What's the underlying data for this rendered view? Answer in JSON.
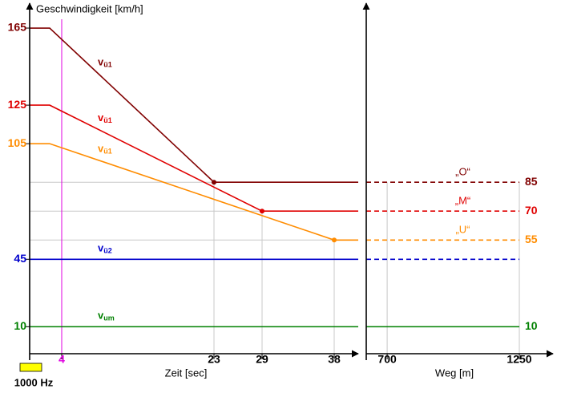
{
  "chart_data": [
    {
      "type": "line",
      "title": "Geschwindigkeit [km/h]",
      "x_label": "Zeit [sec]",
      "xlim": [
        0,
        41
      ],
      "xticks": [
        4,
        23,
        29,
        38
      ],
      "xtick_colors": [
        "#e000e0",
        "#000000",
        "#000000",
        "#000000"
      ],
      "ylim": [
        -4,
        175
      ],
      "yticks": [
        10,
        45,
        105,
        125,
        165
      ],
      "ytick_colors": [
        "#008000",
        "#0000cc",
        "#ff8c00",
        "#e00000",
        "#800000"
      ],
      "reference_line": {
        "x": 4,
        "color": "#e000e0"
      },
      "signal": {
        "label": "1000 Hz",
        "color": "#ffff00"
      },
      "series": [
        {
          "label": "v",
          "label_sub": "ü1",
          "color": "#800000",
          "marker": true,
          "x": [
            0,
            2.5,
            23,
            41
          ],
          "values": [
            165,
            165,
            85,
            85
          ]
        },
        {
          "label": "v",
          "label_sub": "ü1",
          "color": "#e00000",
          "marker": true,
          "x": [
            0,
            2.5,
            29,
            41
          ],
          "values": [
            125,
            125,
            70,
            70
          ]
        },
        {
          "label": "v",
          "label_sub": "ü1",
          "color": "#ff8c00",
          "marker": true,
          "x": [
            0,
            2.5,
            38,
            41
          ],
          "values": [
            105,
            105,
            55,
            55
          ]
        },
        {
          "label": "v",
          "label_sub": "ü2",
          "color": "#0000cc",
          "marker": false,
          "x": [
            0,
            41
          ],
          "values": [
            45,
            45
          ]
        },
        {
          "label": "v",
          "label_sub": "um",
          "color": "#008000",
          "marker": false,
          "x": [
            0,
            41
          ],
          "values": [
            10,
            10
          ]
        }
      ]
    },
    {
      "type": "line",
      "x_label": "Weg [m]",
      "xlim": [
        613,
        1350
      ],
      "xticks": [
        700,
        1250
      ],
      "ylim": [
        -4,
        175
      ],
      "series": [
        {
          "name": "„O“",
          "color": "#800000",
          "dashed": true,
          "end_label": true,
          "x": [
            613,
            1250
          ],
          "values": [
            85,
            85
          ]
        },
        {
          "name": "„M“",
          "color": "#e00000",
          "dashed": true,
          "end_label": true,
          "x": [
            613,
            1250
          ],
          "values": [
            70,
            70
          ]
        },
        {
          "name": "„U“",
          "color": "#ff8c00",
          "dashed": true,
          "end_label": true,
          "x": [
            613,
            1250
          ],
          "values": [
            55,
            55
          ]
        },
        {
          "color": "#0000cc",
          "dashed": true,
          "end_label": false,
          "x": [
            613,
            1250
          ],
          "values": [
            45,
            45
          ]
        },
        {
          "color": "#008000",
          "dashed": false,
          "end_label": true,
          "x": [
            613,
            1250
          ],
          "values": [
            10,
            10
          ]
        }
      ]
    }
  ]
}
